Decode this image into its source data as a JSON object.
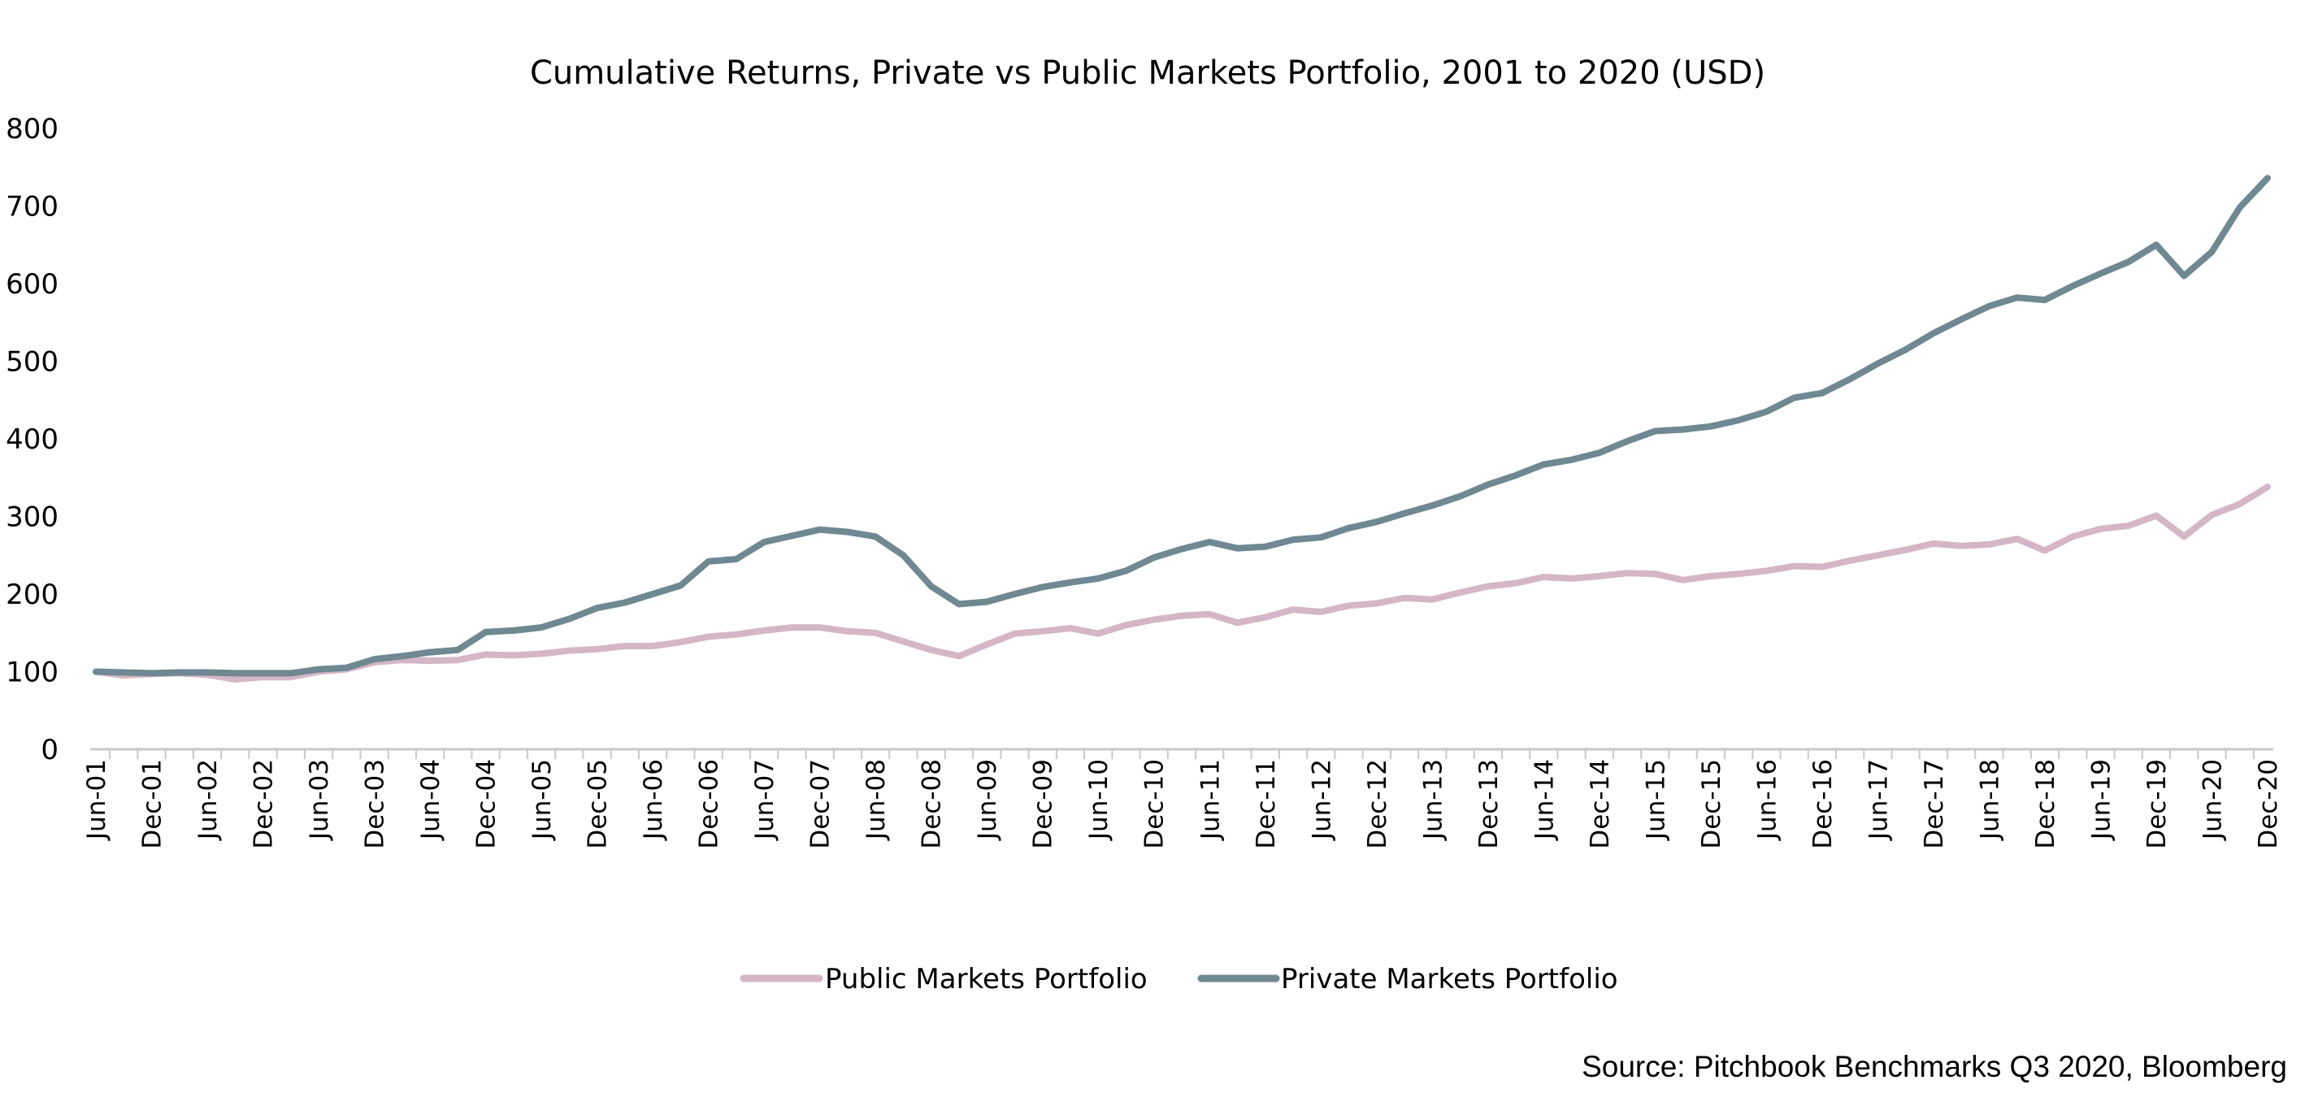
{
  "chart_data": {
    "type": "line",
    "title": "Cumulative Returns, Private vs Public Markets Portfolio, 2001 to 2020 (USD)",
    "xlabel": "",
    "ylabel": "",
    "ylim": [
      0,
      800
    ],
    "yticks": [
      0,
      100,
      200,
      300,
      400,
      500,
      600,
      700,
      800
    ],
    "grid": false,
    "legend_position": "bottom-center",
    "x_tick_labels": [
      "Jun-01",
      "Dec-01",
      "Jun-02",
      "Dec-02",
      "Jun-03",
      "Dec-03",
      "Jun-04",
      "Dec-04",
      "Jun-05",
      "Dec-05",
      "Jun-06",
      "Dec-06",
      "Jun-07",
      "Dec-07",
      "Jun-08",
      "Dec-08",
      "Jun-09",
      "Dec-09",
      "Jun-10",
      "Dec-10",
      "Jun-11",
      "Dec-11",
      "Jun-12",
      "Dec-12",
      "Jun-13",
      "Dec-13",
      "Jun-14",
      "Dec-14",
      "Jun-15",
      "Dec-15",
      "Jun-16",
      "Dec-16",
      "Jun-17",
      "Dec-17",
      "Jun-18",
      "Dec-18",
      "Jun-19",
      "Dec-19",
      "Jun-20",
      "Dec-20"
    ],
    "x": [
      "Jun-01",
      "Sep-01",
      "Dec-01",
      "Mar-02",
      "Jun-02",
      "Sep-02",
      "Dec-02",
      "Mar-03",
      "Jun-03",
      "Sep-03",
      "Dec-03",
      "Mar-04",
      "Jun-04",
      "Sep-04",
      "Dec-04",
      "Mar-05",
      "Jun-05",
      "Sep-05",
      "Dec-05",
      "Mar-06",
      "Jun-06",
      "Sep-06",
      "Dec-06",
      "Mar-07",
      "Jun-07",
      "Sep-07",
      "Dec-07",
      "Mar-08",
      "Jun-08",
      "Sep-08",
      "Dec-08",
      "Mar-09",
      "Jun-09",
      "Sep-09",
      "Dec-09",
      "Mar-10",
      "Jun-10",
      "Sep-10",
      "Dec-10",
      "Mar-11",
      "Jun-11",
      "Sep-11",
      "Dec-11",
      "Mar-12",
      "Jun-12",
      "Sep-12",
      "Dec-12",
      "Mar-13",
      "Jun-13",
      "Sep-13",
      "Dec-13",
      "Mar-14",
      "Jun-14",
      "Sep-14",
      "Dec-14",
      "Mar-15",
      "Jun-15",
      "Sep-15",
      "Dec-15",
      "Mar-16",
      "Jun-16",
      "Sep-16",
      "Dec-16",
      "Mar-17",
      "Jun-17",
      "Sep-17",
      "Dec-17",
      "Mar-18",
      "Jun-18",
      "Sep-18",
      "Dec-18",
      "Mar-19",
      "Jun-19",
      "Sep-19",
      "Dec-19",
      "Mar-20",
      "Jun-20",
      "Sep-20",
      "Dec-20"
    ],
    "series": [
      {
        "name": "Public Markets Portfolio",
        "color": "#d5b6c6",
        "values": [
          100,
          95,
          97,
          98,
          96,
          90,
          93,
          93,
          100,
          103,
          112,
          115,
          114,
          115,
          122,
          121,
          123,
          127,
          129,
          133,
          133,
          138,
          145,
          148,
          153,
          157,
          157,
          152,
          150,
          139,
          128,
          120,
          135,
          149,
          152,
          156,
          149,
          160,
          167,
          172,
          174,
          163,
          170,
          180,
          177,
          185,
          188,
          195,
          193,
          202,
          210,
          214,
          222,
          220,
          223,
          227,
          226,
          218,
          223,
          226,
          230,
          236,
          235,
          243,
          250,
          257,
          265,
          262,
          264,
          271,
          256,
          274,
          284,
          288,
          301,
          274,
          302,
          316,
          338
        ]
      },
      {
        "name": "Private Markets Portfolio",
        "color": "#6f8892",
        "values": [
          100,
          99,
          98,
          99,
          99,
          98,
          98,
          98,
          103,
          105,
          116,
          120,
          125,
          128,
          151,
          153,
          157,
          168,
          182,
          189,
          200,
          211,
          242,
          245,
          267,
          275,
          283,
          280,
          274,
          250,
          210,
          187,
          190,
          200,
          209,
          215,
          220,
          230,
          247,
          258,
          267,
          259,
          261,
          270,
          273,
          285,
          293,
          304,
          314,
          326,
          341,
          353,
          367,
          373,
          382,
          397,
          410,
          412,
          416,
          424,
          435,
          453,
          459,
          477,
          497,
          515,
          536,
          554,
          571,
          582,
          579,
          597,
          613,
          628,
          650,
          610,
          641,
          698,
          736
        ]
      }
    ]
  },
  "source": "Source: Pitchbook Benchmarks Q3 2020, Bloomberg"
}
